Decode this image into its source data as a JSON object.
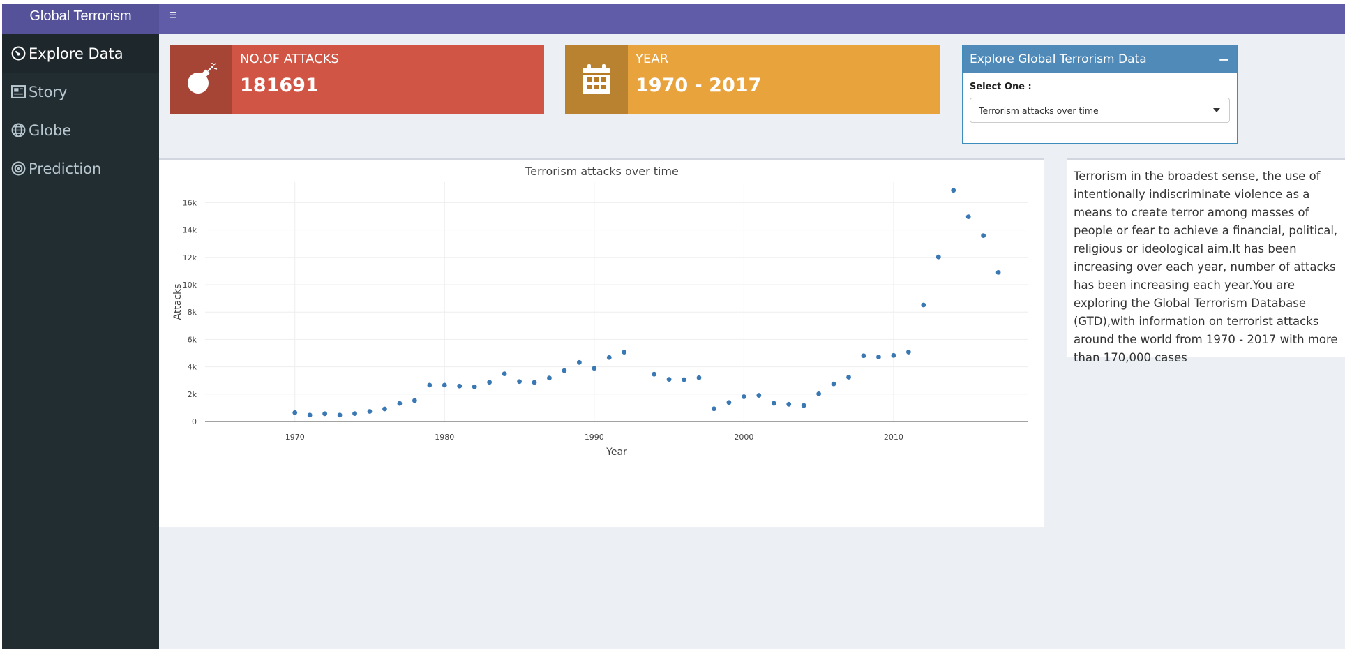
{
  "app": {
    "title": "Global Terrorism",
    "toggle": "≡"
  },
  "sidebar": {
    "items": [
      {
        "label": "Explore Data",
        "icon": "tachometer-icon",
        "active": true
      },
      {
        "label": "Story",
        "icon": "newspaper-icon",
        "active": false
      },
      {
        "label": "Globe",
        "icon": "globe-icon",
        "active": false
      },
      {
        "label": "Prediction",
        "icon": "bullseye-icon",
        "active": false
      }
    ]
  },
  "infoboxes": {
    "attacks": {
      "label": "NO.OF ATTACKS",
      "value": "181691",
      "icon": "bomb-icon",
      "color": "#d05544"
    },
    "year": {
      "label": "YEAR",
      "value": "1970 - 2017",
      "icon": "calendar-icon",
      "color": "#e8a33c"
    }
  },
  "control": {
    "title": "Explore Global Terrorism Data",
    "collapse": "−",
    "select_label": "Select One :",
    "selected": "Terrorism attacks over time"
  },
  "description": "Terrorism in the broadest sense, the use of intentionally indiscriminate violence as a means to create terror among masses of people or fear to achieve a financial, political, religious or ideological aim.It has been increasing over each year, number of attacks has been increasing each year.You are exploring the Global Terrorism Database (GTD),with information on terrorist attacks around the world from 1970 - 2017 with more than 170,000 cases",
  "chart_data": {
    "type": "scatter",
    "title": "Terrorism attacks over time",
    "xlabel": "Year",
    "ylabel": "Attacks",
    "xlim": [
      1964,
      2019
    ],
    "ylim": [
      0,
      17500
    ],
    "xticks": [
      1970,
      1980,
      1990,
      2000,
      2010
    ],
    "yticks": [
      0,
      2000,
      4000,
      6000,
      8000,
      10000,
      12000,
      14000,
      16000
    ],
    "ytick_labels": [
      "0",
      "2k",
      "4k",
      "6k",
      "8k",
      "10k",
      "12k",
      "14k",
      "16k"
    ],
    "color": "#3a78b4",
    "x": [
      1970,
      1971,
      1972,
      1973,
      1974,
      1975,
      1976,
      1977,
      1978,
      1979,
      1980,
      1981,
      1982,
      1983,
      1984,
      1985,
      1986,
      1987,
      1988,
      1989,
      1990,
      1991,
      1992,
      1994,
      1995,
      1996,
      1997,
      1998,
      1999,
      2000,
      2001,
      2002,
      2003,
      2004,
      2005,
      2006,
      2007,
      2008,
      2009,
      2010,
      2011,
      2012,
      2013,
      2014,
      2015,
      2016,
      2017
    ],
    "y": [
      650,
      470,
      570,
      470,
      580,
      740,
      920,
      1320,
      1530,
      2660,
      2660,
      2590,
      2540,
      2870,
      3490,
      2920,
      2860,
      3180,
      3720,
      4320,
      3890,
      4680,
      5070,
      3460,
      3080,
      3060,
      3200,
      930,
      1390,
      1810,
      1910,
      1330,
      1260,
      1170,
      2020,
      2750,
      3240,
      4810,
      4720,
      4830,
      5080,
      8520,
      12030,
      16900,
      14970,
      13590,
      10900
    ]
  }
}
